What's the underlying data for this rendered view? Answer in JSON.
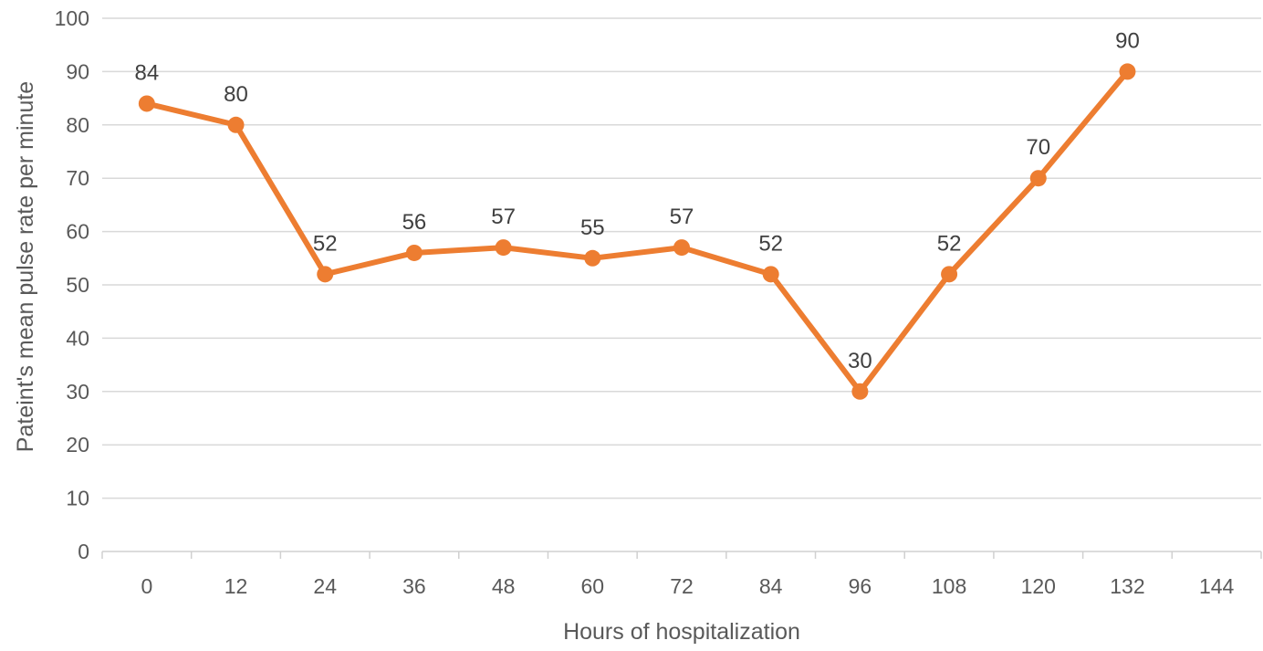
{
  "chart_data": {
    "type": "line",
    "title": "",
    "xlabel": "Hours of hospitalization",
    "ylabel": "Pateint's mean pulse rate per minute",
    "categories": [
      "0",
      "12",
      "24",
      "36",
      "48",
      "60",
      "72",
      "84",
      "96",
      "108",
      "120",
      "132",
      "144"
    ],
    "series": [
      {
        "values": [
          84,
          80,
          52,
          56,
          57,
          55,
          57,
          52,
          30,
          52,
          70,
          90,
          null
        ],
        "color": "#ED7D31"
      }
    ],
    "ylim": [
      0,
      100
    ],
    "yticks": [
      "0",
      "10",
      "20",
      "30",
      "40",
      "50",
      "60",
      "70",
      "80",
      "90",
      "100"
    ],
    "grid": true,
    "legend": "none",
    "data_labels": true
  }
}
